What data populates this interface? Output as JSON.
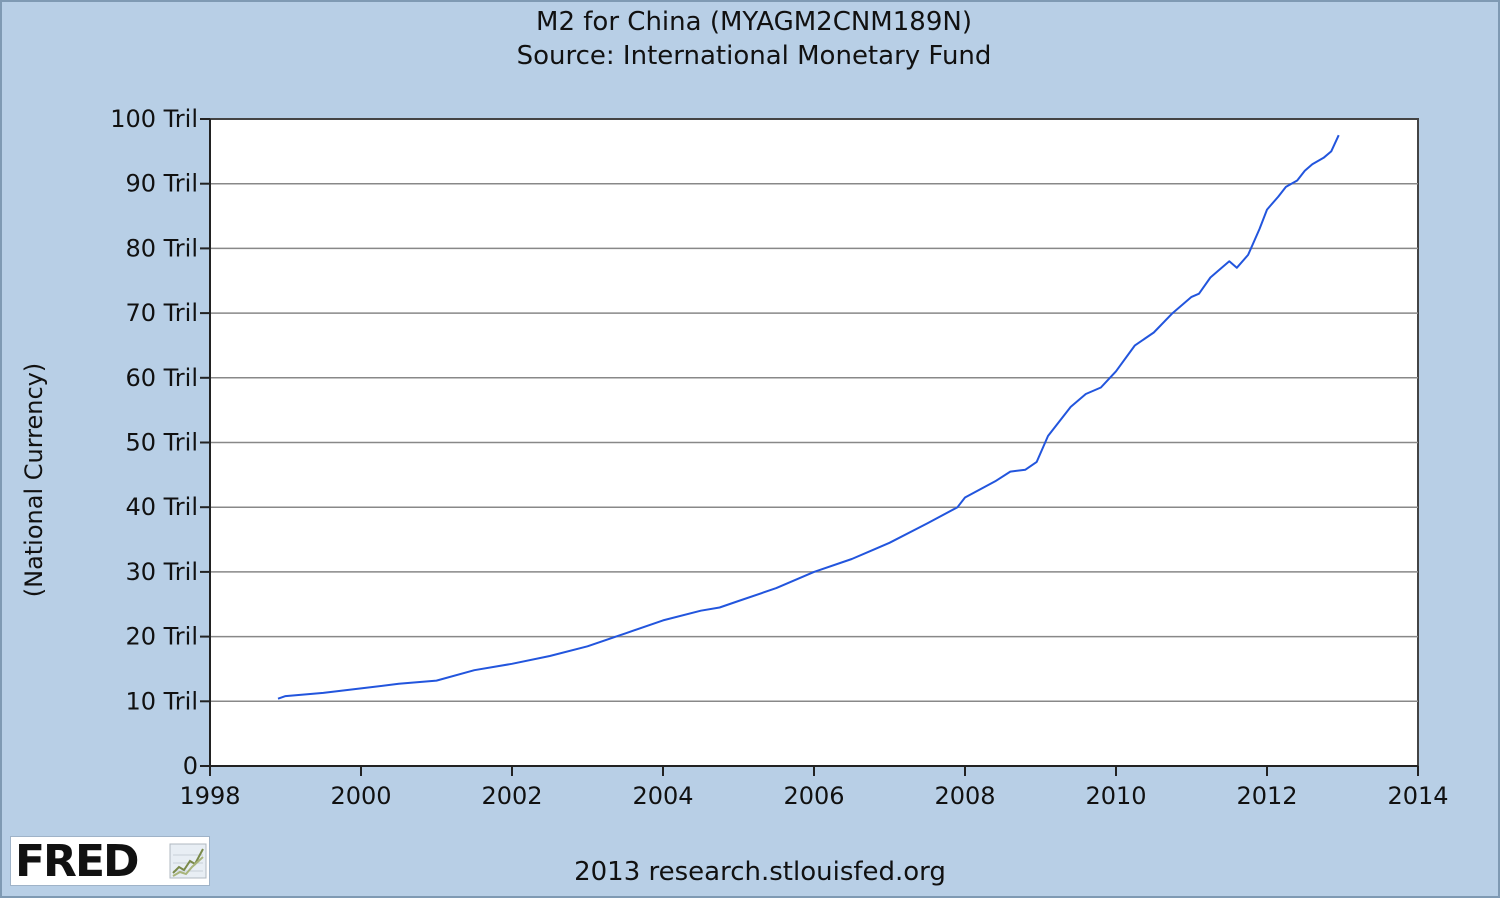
{
  "chart_data": {
    "type": "line",
    "title": "M2 for China (MYAGM2CNM189N)",
    "subtitle": "Source: International Monetary Fund",
    "ylabel": "(National Currency)",
    "xlabel": "",
    "xlim": [
      1998,
      2014
    ],
    "ylim": [
      0,
      100
    ],
    "x_ticks": [
      "1998",
      "2000",
      "2002",
      "2004",
      "2006",
      "2008",
      "2010",
      "2012",
      "2014"
    ],
    "y_ticks": [
      "0",
      "10 Tril",
      "20 Tril",
      "30 Tril",
      "40 Tril",
      "50 Tril",
      "60 Tril",
      "70 Tril",
      "80 Tril",
      "90 Tril",
      "100 Tril"
    ],
    "grid": "horizontal",
    "line_color": "#2255dd",
    "series": [
      {
        "x": [
          1998.9,
          1999.0,
          1999.5,
          2000.0,
          2000.5,
          2001.0,
          2001.5,
          2002.0,
          2002.5,
          2003.0,
          2003.5,
          2004.0,
          2004.5,
          2004.75,
          2005.0,
          2005.5,
          2006.0,
          2006.5,
          2006.8,
          2007.0,
          2007.5,
          2007.9,
          2008.0,
          2008.4,
          2008.6,
          2008.8,
          2008.95,
          2009.1,
          2009.4,
          2009.6,
          2009.8,
          2010.0,
          2010.25,
          2010.5,
          2010.75,
          2011.0,
          2011.1,
          2011.25,
          2011.4,
          2011.5,
          2011.6,
          2011.75,
          2011.9,
          2012.0,
          2012.15,
          2012.25,
          2012.4,
          2012.5,
          2012.6,
          2012.75,
          2012.85,
          2012.95
        ],
        "y": [
          10.4,
          10.8,
          11.3,
          12.0,
          12.7,
          13.2,
          14.8,
          15.8,
          17.0,
          18.5,
          20.5,
          22.5,
          24.0,
          24.5,
          25.5,
          27.5,
          30.0,
          32.0,
          33.5,
          34.5,
          37.5,
          40.0,
          41.5,
          44.0,
          45.5,
          45.8,
          47.0,
          51.0,
          55.5,
          57.5,
          58.5,
          61.0,
          65.0,
          67.0,
          70.0,
          72.5,
          73.0,
          75.5,
          77.0,
          78.0,
          77.0,
          79.0,
          83.0,
          86.0,
          88.0,
          89.5,
          90.5,
          92.0,
          93.0,
          94.0,
          95.0,
          97.5
        ]
      }
    ]
  },
  "footer": {
    "credit": "2013 research.stlouisfed.org",
    "logo_text": "FRED"
  }
}
